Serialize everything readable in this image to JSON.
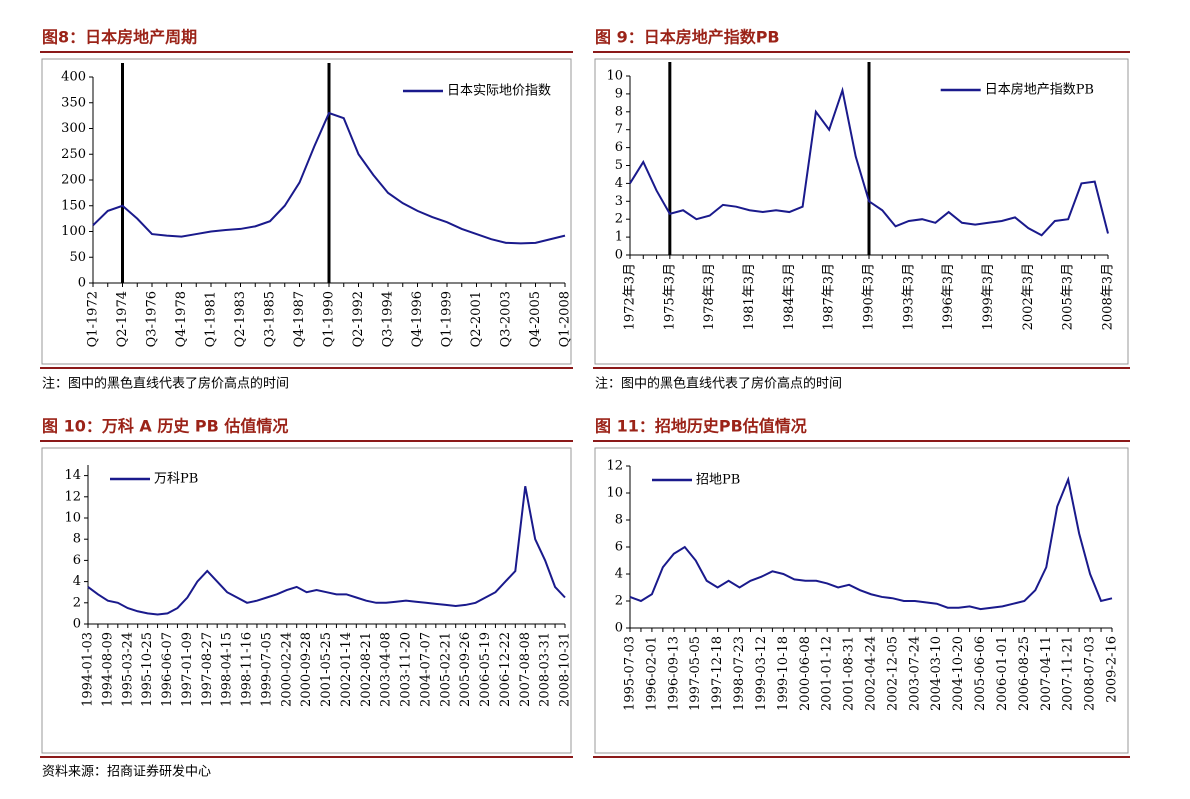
{
  "chart_data": [
    {
      "type": "line",
      "title": "图8：日本房地产周期",
      "note": "注：图中的黑色直线代表了房价高点的时间",
      "categories": [
        "Q1-1972",
        null,
        "Q2-1974",
        null,
        "Q3-1976",
        null,
        "Q4-1978",
        null,
        "Q1-1981",
        null,
        "Q2-1983",
        null,
        "Q3-1985",
        null,
        "Q4-1987",
        null,
        "Q1-1990",
        null,
        "Q2-1992",
        null,
        "Q3-1994",
        null,
        "Q4-1996",
        null,
        "Q1-1999",
        null,
        "Q2-2001",
        null,
        "Q3-2003",
        null,
        "Q4-2005",
        null,
        "Q1-2008"
      ],
      "series": [
        {
          "name": "日本实际地价指数",
          "color": "#1a1a8c",
          "values": [
            112,
            140,
            150,
            125,
            95,
            92,
            90,
            95,
            100,
            103,
            105,
            110,
            120,
            150,
            195,
            265,
            330,
            320,
            250,
            210,
            175,
            155,
            140,
            128,
            118,
            105,
            95,
            85,
            78,
            77,
            78,
            85,
            92
          ]
        }
      ],
      "ylim": [
        0,
        400
      ],
      "yticks": [
        0,
        50,
        100,
        150,
        200,
        250,
        300,
        350,
        400
      ],
      "marker_lines": [
        "Q2-1974",
        "Q1-1990"
      ],
      "legend": "upper right"
    },
    {
      "type": "line",
      "title": "图 9：日本房地产指数PB",
      "note": "注：图中的黑色直线代表了房价高点的时间",
      "categories": [
        "1972年3月",
        null,
        null,
        "1975年3月",
        null,
        null,
        "1978年3月",
        null,
        null,
        "1981年3月",
        null,
        null,
        "1984年3月",
        null,
        null,
        "1987年3月",
        null,
        null,
        "1990年3月",
        null,
        null,
        "1993年3月",
        null,
        null,
        "1996年3月",
        null,
        null,
        "1999年3月",
        null,
        null,
        "2002年3月",
        null,
        null,
        "2005年3月",
        null,
        null,
        "2008年3月"
      ],
      "series": [
        {
          "name": "日本房地产指数PB",
          "color": "#1a1a8c",
          "values": [
            4.0,
            5.2,
            3.6,
            2.3,
            2.5,
            2.0,
            2.2,
            2.8,
            2.7,
            2.5,
            2.4,
            2.5,
            2.4,
            2.7,
            8.0,
            7.0,
            9.2,
            5.5,
            3.0,
            2.5,
            1.6,
            1.9,
            2.0,
            1.8,
            2.4,
            1.8,
            1.7,
            1.8,
            1.9,
            2.1,
            1.5,
            1.1,
            1.9,
            2.0,
            4.0,
            4.1,
            1.2
          ]
        }
      ],
      "ylim": [
        0,
        10
      ],
      "yticks": [
        0,
        1,
        2,
        3,
        4,
        5,
        6,
        7,
        8,
        9,
        10
      ],
      "marker_lines": [
        "1975年3月",
        "1990年3月"
      ],
      "legend": "upper right"
    },
    {
      "type": "line",
      "title": "图 10：万科 A 历史 PB 估值情况",
      "categories": [
        "1994-01-03",
        null,
        "1994-08-09",
        null,
        "1995-03-24",
        null,
        "1995-10-25",
        null,
        "1996-06-07",
        null,
        "1997-01-09",
        null,
        "1997-08-27",
        null,
        "1998-04-15",
        null,
        "1998-11-16",
        null,
        "1999-07-05",
        null,
        "2000-02-24",
        null,
        "2000-09-28",
        null,
        "2001-05-25",
        null,
        "2002-01-14",
        null,
        "2002-08-21",
        null,
        "2003-04-08",
        null,
        "2003-11-20",
        null,
        "2004-07-07",
        null,
        "2005-02-21",
        null,
        "2005-09-26",
        null,
        "2006-05-19",
        null,
        "2006-12-22",
        null,
        "2007-08-08",
        null,
        "2008-03-31",
        null,
        "2008-10-31"
      ],
      "series": [
        {
          "name": "万科PB",
          "color": "#1a1a8c",
          "values": [
            3.5,
            2.8,
            2.2,
            2.0,
            1.5,
            1.2,
            1.0,
            0.9,
            1.0,
            1.5,
            2.5,
            4.0,
            5.0,
            4.0,
            3.0,
            2.5,
            2.0,
            2.2,
            2.5,
            2.8,
            3.2,
            3.5,
            3.0,
            3.2,
            3.0,
            2.8,
            2.8,
            2.5,
            2.2,
            2.0,
            2.0,
            2.1,
            2.2,
            2.1,
            2.0,
            1.9,
            1.8,
            1.7,
            1.8,
            2.0,
            2.5,
            3.0,
            4.0,
            5.0,
            13.0,
            8.0,
            6.0,
            3.5,
            2.5
          ]
        }
      ],
      "ylim": [
        0,
        15
      ],
      "yticks": [
        0,
        2,
        4,
        6,
        8,
        10,
        12,
        14
      ],
      "legend": "upper left"
    },
    {
      "type": "line",
      "title": "图 11：招地历史PB估值情况",
      "categories": [
        "1995-07-03",
        null,
        "1996-02-01",
        null,
        "1996-09-13",
        null,
        "1997-05-05",
        null,
        "1997-12-18",
        null,
        "1998-07-23",
        null,
        "1999-03-12",
        null,
        "1999-10-18",
        null,
        "2000-06-08",
        null,
        "2001-01-12",
        null,
        "2001-08-31",
        null,
        "2002-04-24",
        null,
        "2002-12-05",
        null,
        "2003-07-24",
        null,
        "2004-03-10",
        null,
        "2004-10-20",
        null,
        "2005-06-06",
        null,
        "2006-01-01",
        null,
        "2006-08-25",
        null,
        "2007-04-11",
        null,
        "2007-11-21",
        null,
        "2008-07-03",
        null,
        "2009-2-16"
      ],
      "series": [
        {
          "name": "招地PB",
          "color": "#1a1a8c",
          "values": [
            2.3,
            2.0,
            2.5,
            4.5,
            5.5,
            6.0,
            5.0,
            3.5,
            3.0,
            3.5,
            3.0,
            3.5,
            3.8,
            4.2,
            4.0,
            3.6,
            3.5,
            3.5,
            3.3,
            3.0,
            3.2,
            2.8,
            2.5,
            2.3,
            2.2,
            2.0,
            2.0,
            1.9,
            1.8,
            1.5,
            1.5,
            1.6,
            1.4,
            1.5,
            1.6,
            1.8,
            2.0,
            2.8,
            4.5,
            9.0,
            11.0,
            7.0,
            4.0,
            2.0,
            2.2
          ]
        }
      ],
      "ylim": [
        0,
        12
      ],
      "yticks": [
        0,
        2,
        4,
        6,
        8,
        10,
        12
      ],
      "legend": "upper left"
    }
  ],
  "source": "资料来源：招商证券研发中心"
}
